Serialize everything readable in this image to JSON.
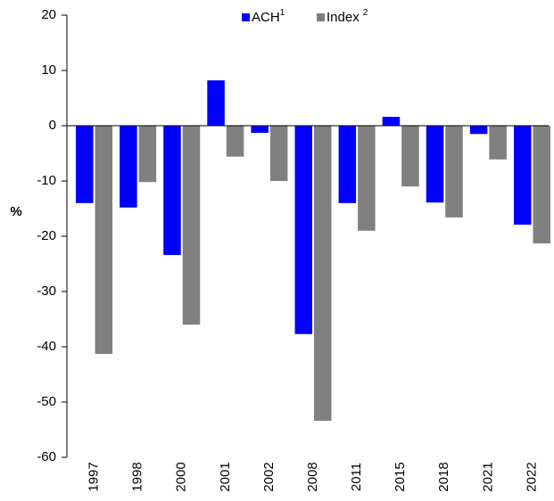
{
  "chart_data": {
    "type": "bar",
    "y_label": "%",
    "categories": [
      "1997",
      "1998",
      "2000",
      "2001",
      "2002",
      "2008",
      "2011",
      "2015",
      "2018",
      "2021",
      "2022"
    ],
    "series": [
      {
        "name": "ACH",
        "note": "1",
        "color": "#0000ff",
        "values": [
          -14.0,
          -14.8,
          -23.4,
          8.2,
          -1.3,
          -37.7,
          -14.0,
          1.6,
          -13.9,
          -1.5,
          -17.9
        ]
      },
      {
        "name": "Index",
        "note": "2",
        "color": "#808080",
        "values": [
          -41.3,
          -10.2,
          -36.0,
          -5.6,
          -10.0,
          -53.4,
          -19.0,
          -11.0,
          -16.6,
          -6.1,
          -21.3
        ]
      }
    ],
    "ylim": [
      -60,
      20
    ],
    "yticks": [
      -60,
      -50,
      -40,
      -30,
      -20,
      -10,
      0,
      10,
      20
    ],
    "grid": false
  }
}
